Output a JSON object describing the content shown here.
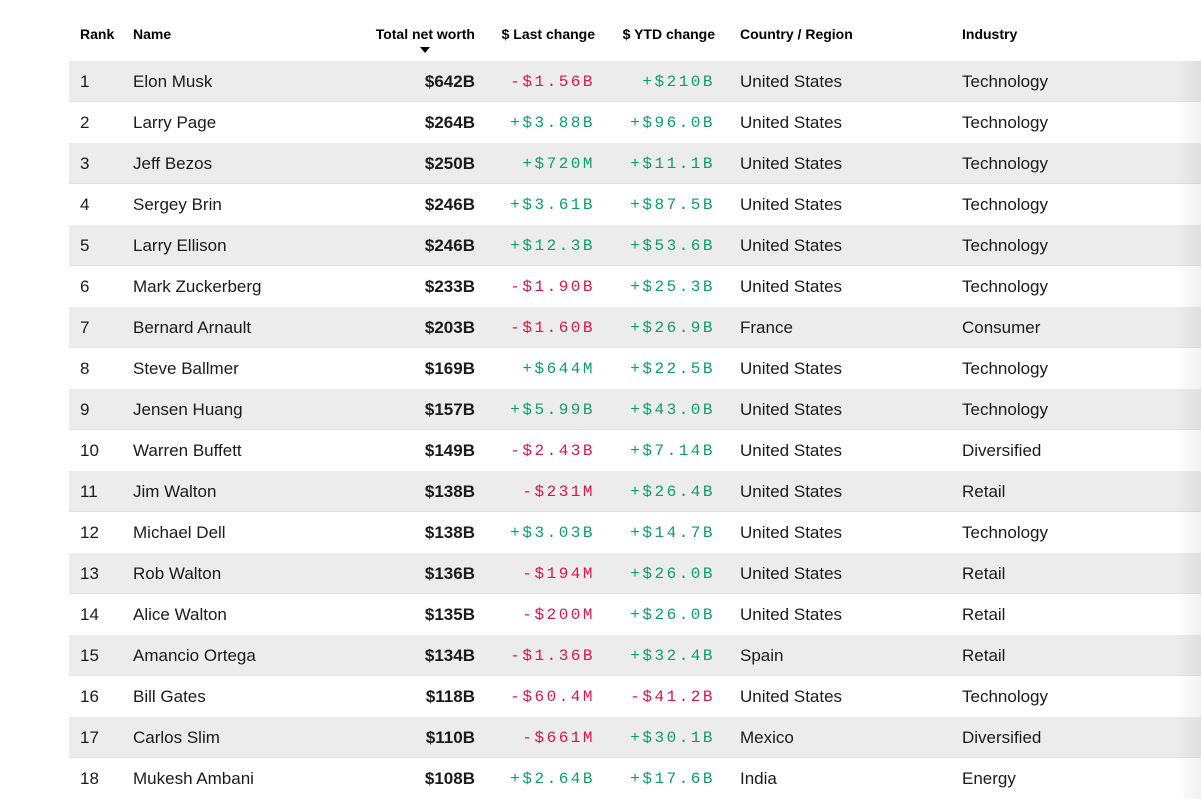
{
  "colors": {
    "positive": "#0e9c6a",
    "negative": "#d5174a",
    "stripe": "#ececec"
  },
  "table": {
    "columns": {
      "rank": "Rank",
      "name": "Name",
      "net_worth": "Total net worth",
      "last_change": "$ Last change",
      "ytd_change": "$ YTD change",
      "country": "Country / Region",
      "industry": "Industry"
    },
    "sort": {
      "column": "net_worth",
      "direction": "desc"
    },
    "rows": [
      {
        "rank": "1",
        "name": "Elon Musk",
        "net_worth": "$642B",
        "last_change": "-$1.56B",
        "ytd_change": "+$210B",
        "country": "United States",
        "industry": "Technology"
      },
      {
        "rank": "2",
        "name": "Larry Page",
        "net_worth": "$264B",
        "last_change": "+$3.88B",
        "ytd_change": "+$96.0B",
        "country": "United States",
        "industry": "Technology"
      },
      {
        "rank": "3",
        "name": "Jeff Bezos",
        "net_worth": "$250B",
        "last_change": "+$720M",
        "ytd_change": "+$11.1B",
        "country": "United States",
        "industry": "Technology"
      },
      {
        "rank": "4",
        "name": "Sergey Brin",
        "net_worth": "$246B",
        "last_change": "+$3.61B",
        "ytd_change": "+$87.5B",
        "country": "United States",
        "industry": "Technology"
      },
      {
        "rank": "5",
        "name": "Larry Ellison",
        "net_worth": "$246B",
        "last_change": "+$12.3B",
        "ytd_change": "+$53.6B",
        "country": "United States",
        "industry": "Technology"
      },
      {
        "rank": "6",
        "name": "Mark Zuckerberg",
        "net_worth": "$233B",
        "last_change": "-$1.90B",
        "ytd_change": "+$25.3B",
        "country": "United States",
        "industry": "Technology"
      },
      {
        "rank": "7",
        "name": "Bernard Arnault",
        "net_worth": "$203B",
        "last_change": "-$1.60B",
        "ytd_change": "+$26.9B",
        "country": "France",
        "industry": "Consumer"
      },
      {
        "rank": "8",
        "name": "Steve Ballmer",
        "net_worth": "$169B",
        "last_change": "+$644M",
        "ytd_change": "+$22.5B",
        "country": "United States",
        "industry": "Technology"
      },
      {
        "rank": "9",
        "name": "Jensen Huang",
        "net_worth": "$157B",
        "last_change": "+$5.99B",
        "ytd_change": "+$43.0B",
        "country": "United States",
        "industry": "Technology"
      },
      {
        "rank": "10",
        "name": "Warren Buffett",
        "net_worth": "$149B",
        "last_change": "-$2.43B",
        "ytd_change": "+$7.14B",
        "country": "United States",
        "industry": "Diversified"
      },
      {
        "rank": "11",
        "name": "Jim Walton",
        "net_worth": "$138B",
        "last_change": "-$231M",
        "ytd_change": "+$26.4B",
        "country": "United States",
        "industry": "Retail"
      },
      {
        "rank": "12",
        "name": "Michael Dell",
        "net_worth": "$138B",
        "last_change": "+$3.03B",
        "ytd_change": "+$14.7B",
        "country": "United States",
        "industry": "Technology"
      },
      {
        "rank": "13",
        "name": "Rob Walton",
        "net_worth": "$136B",
        "last_change": "-$194M",
        "ytd_change": "+$26.0B",
        "country": "United States",
        "industry": "Retail"
      },
      {
        "rank": "14",
        "name": "Alice Walton",
        "net_worth": "$135B",
        "last_change": "-$200M",
        "ytd_change": "+$26.0B",
        "country": "United States",
        "industry": "Retail"
      },
      {
        "rank": "15",
        "name": "Amancio Ortega",
        "net_worth": "$134B",
        "last_change": "-$1.36B",
        "ytd_change": "+$32.4B",
        "country": "Spain",
        "industry": "Retail"
      },
      {
        "rank": "16",
        "name": "Bill Gates",
        "net_worth": "$118B",
        "last_change": "-$60.4M",
        "ytd_change": "-$41.2B",
        "country": "United States",
        "industry": "Technology"
      },
      {
        "rank": "17",
        "name": "Carlos Slim",
        "net_worth": "$110B",
        "last_change": "-$661M",
        "ytd_change": "+$30.1B",
        "country": "Mexico",
        "industry": "Diversified"
      },
      {
        "rank": "18",
        "name": "Mukesh Ambani",
        "net_worth": "$108B",
        "last_change": "+$2.64B",
        "ytd_change": "+$17.6B",
        "country": "India",
        "industry": "Energy"
      }
    ]
  }
}
